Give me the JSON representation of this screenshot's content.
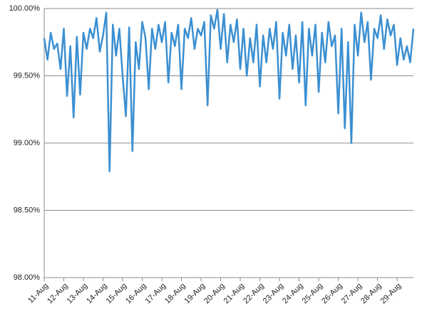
{
  "chart_data": {
    "type": "line",
    "categories": [
      "11-Aug",
      null,
      null,
      null,
      null,
      null,
      "12-Aug",
      null,
      null,
      null,
      null,
      null,
      "13-Aug",
      null,
      null,
      null,
      null,
      null,
      "14-Aug",
      null,
      null,
      null,
      null,
      null,
      "15-Aug",
      null,
      null,
      null,
      null,
      null,
      "16-Aug",
      null,
      null,
      null,
      null,
      null,
      "17-Aug",
      null,
      null,
      null,
      null,
      null,
      "18-Aug",
      null,
      null,
      null,
      null,
      null,
      "19-Aug",
      null,
      null,
      null,
      null,
      null,
      "20-Aug",
      null,
      null,
      null,
      null,
      null,
      "21-Aug",
      null,
      null,
      null,
      null,
      null,
      "22-Aug",
      null,
      null,
      null,
      null,
      null,
      "23-Aug",
      null,
      null,
      null,
      null,
      null,
      "24-Aug",
      null,
      null,
      null,
      null,
      null,
      "25-Aug",
      null,
      null,
      null,
      null,
      null,
      "26-Aug",
      null,
      null,
      null,
      null,
      null,
      "27-Aug",
      null,
      null,
      null,
      null,
      null,
      "28-Aug",
      null,
      null,
      null,
      null,
      null,
      "29-Aug",
      null,
      null,
      null,
      null,
      null
    ],
    "values": [
      99.78,
      99.62,
      99.82,
      99.7,
      99.74,
      99.55,
      99.85,
      99.35,
      99.72,
      99.19,
      99.79,
      99.36,
      99.82,
      99.7,
      99.85,
      99.78,
      99.93,
      99.68,
      99.8,
      99.97,
      98.79,
      99.88,
      99.65,
      99.85,
      99.5,
      99.2,
      99.86,
      98.94,
      99.75,
      99.55,
      99.9,
      99.78,
      99.4,
      99.85,
      99.7,
      99.88,
      99.75,
      99.9,
      99.45,
      99.82,
      99.72,
      99.88,
      99.4,
      99.85,
      99.78,
      99.93,
      99.7,
      99.85,
      99.8,
      99.9,
      99.28,
      99.95,
      99.85,
      99.99,
      99.7,
      99.96,
      99.6,
      99.88,
      99.75,
      99.92,
      99.55,
      99.85,
      99.5,
      99.78,
      99.6,
      99.88,
      99.42,
      99.8,
      99.6,
      99.85,
      99.7,
      99.9,
      99.33,
      99.82,
      99.65,
      99.88,
      99.55,
      99.8,
      99.45,
      99.9,
      99.28,
      99.85,
      99.65,
      99.88,
      99.38,
      99.82,
      99.6,
      99.9,
      99.72,
      99.8,
      99.22,
      99.85,
      99.11,
      99.75,
      99.0,
      99.88,
      99.65,
      99.97,
      99.75,
      99.9,
      99.47,
      99.85,
      99.78,
      99.95,
      99.7,
      99.92,
      99.8,
      99.88,
      99.58,
      99.78,
      99.62,
      99.72,
      99.6,
      99.85
    ],
    "color": "#3b8fd1",
    "ylim": [
      98,
      100
    ],
    "yticks": [
      {
        "value": 98,
        "label": "98.00%"
      },
      {
        "value": 98.5,
        "label": "98.50%"
      },
      {
        "value": 99,
        "label": "99.00%"
      },
      {
        "value": 99.5,
        "label": "99.50%"
      },
      {
        "value": 100,
        "label": "100.00%"
      }
    ],
    "grid": true
  }
}
